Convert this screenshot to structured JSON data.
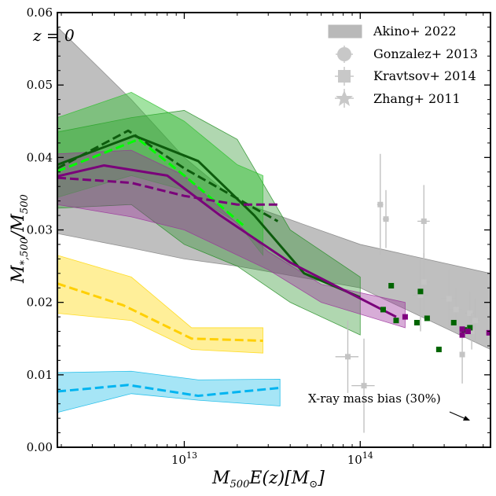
{
  "chart_data": {
    "type": "line",
    "xlabel": "M500E(z)[M⊙]",
    "ylabel": "M*,500/M500",
    "xscale": "log",
    "xlim": [
      1900000000000.0,
      550000000000000.0
    ],
    "ylim": [
      0.0,
      0.06
    ],
    "x_ticks": [
      {
        "value": 10000000000000.0,
        "label": "10^13"
      },
      {
        "value": 100000000000000.0,
        "label": "10^14"
      }
    ],
    "y_ticks": [
      "0.00",
      "0.01",
      "0.02",
      "0.03",
      "0.04",
      "0.05",
      "0.06"
    ],
    "annotation_z": "z = 0",
    "annotation_bias": "X-ray mass bias (30%)",
    "legend": {
      "placement": "top-right",
      "entries": [
        {
          "label": "Akino+ 2022",
          "marker": "band"
        },
        {
          "label": "Gonzalez+ 2013",
          "marker": "circle"
        },
        {
          "label": "Kravtsov+ 2014",
          "marker": "square"
        },
        {
          "label": "Zhang+ 2011",
          "marker": "star"
        }
      ]
    },
    "bands": [
      {
        "color": "#808080",
        "opacity": 0.5,
        "x": [
          1900000000000.0,
          5000000000000.0,
          10000000000000.0,
          20000000000000.0,
          100000000000000.0,
          550000000000000.0
        ],
        "upper": [
          0.058,
          0.048,
          0.04,
          0.034,
          0.028,
          0.024
        ],
        "lower": [
          0.0295,
          0.0275,
          0.026,
          0.025,
          0.022,
          0.0135
        ]
      },
      {
        "color": "#1e8c1e",
        "opacity": 0.35,
        "x": [
          1900000000000.0,
          5000000000000.0,
          10000000000000.0,
          20000000000000.0,
          40000000000000.0,
          100000000000000.0
        ],
        "upper": [
          0.0435,
          0.0455,
          0.0465,
          0.0425,
          0.03,
          0.0235
        ],
        "lower": [
          0.033,
          0.0335,
          0.028,
          0.025,
          0.02,
          0.0155
        ]
      },
      {
        "color": "#30c030",
        "opacity": 0.45,
        "x": [
          1900000000000.0,
          5000000000000.0,
          10000000000000.0,
          20000000000000.0,
          28000000000000.0
        ],
        "upper": [
          0.0455,
          0.049,
          0.045,
          0.039,
          0.0375
        ],
        "lower": [
          0.0345,
          0.0375,
          0.0355,
          0.031,
          0.0265
        ]
      },
      {
        "color": "#9b309b",
        "opacity": 0.4,
        "x": [
          1900000000000.0,
          5000000000000.0,
          10000000000000.0,
          30000000000000.0,
          60000000000000.0,
          180000000000000.0
        ],
        "upper": [
          0.0405,
          0.041,
          0.0375,
          0.027,
          0.0225,
          0.02
        ],
        "lower": [
          0.0335,
          0.0318,
          0.03,
          0.0245,
          0.02,
          0.0165
        ]
      },
      {
        "color": "#ffd600",
        "opacity": 0.4,
        "x": [
          1900000000000.0,
          5000000000000.0,
          11000000000000.0,
          28000000000000.0
        ],
        "upper": [
          0.0265,
          0.0235,
          0.0165,
          0.0165
        ],
        "lower": [
          0.0185,
          0.0175,
          0.0135,
          0.013
        ]
      },
      {
        "color": "#00b4e6",
        "opacity": 0.35,
        "x": [
          1900000000000.0,
          5000000000000.0,
          12000000000000.0,
          35000000000000.0
        ],
        "upper": [
          0.0103,
          0.0105,
          0.0093,
          0.0094
        ],
        "lower": [
          0.0048,
          0.0074,
          0.0065,
          0.0057
        ]
      }
    ],
    "series": [
      {
        "color": "#0d5c0d",
        "dash": false,
        "width": 3,
        "x": [
          1900000000000.0,
          5200000000000.0,
          12000000000000.0,
          25000000000000.0,
          48000000000000.0,
          100000000000000.0
        ],
        "y": [
          0.039,
          0.043,
          0.0395,
          0.032,
          0.024,
          0.0207
        ]
      },
      {
        "color": "#0d5c0d",
        "dash": true,
        "width": 3,
        "x": [
          1900000000000.0,
          4800000000000.0,
          10000000000000.0,
          23000000000000.0,
          34000000000000.0
        ],
        "y": [
          0.0385,
          0.0437,
          0.0385,
          0.0335,
          0.0312
        ]
      },
      {
        "color": "#00ff00",
        "dash": true,
        "width": 3,
        "x": [
          1900000000000.0,
          5500000000000.0,
          10000000000000.0,
          22000000000000.0
        ],
        "y": [
          0.0381,
          0.0425,
          0.0375,
          0.0305
        ]
      },
      {
        "color": "#7a007a",
        "dash": false,
        "width": 3,
        "x": [
          1900000000000.0,
          3500000000000.0,
          8000000000000.0,
          16000000000000.0,
          40000000000000.0,
          160000000000000.0
        ],
        "y": [
          0.0374,
          0.0389,
          0.0375,
          0.032,
          0.0255,
          0.018
        ]
      },
      {
        "color": "#7a007a",
        "dash": true,
        "width": 3,
        "x": [
          1900000000000.0,
          5000000000000.0,
          10000000000000.0,
          20000000000000.0,
          35000000000000.0
        ],
        "y": [
          0.0372,
          0.0365,
          0.0347,
          0.0335,
          0.0335
        ]
      },
      {
        "color": "#ffcf00",
        "dash": true,
        "width": 3,
        "x": [
          1900000000000.0,
          4500000000000.0,
          11000000000000.0,
          28000000000000.0
        ],
        "y": [
          0.0226,
          0.0196,
          0.015,
          0.0147
        ]
      },
      {
        "color": "#00b4f0",
        "dash": true,
        "width": 3,
        "x": [
          1900000000000.0,
          4800000000000.0,
          12000000000000.0,
          35000000000000.0
        ],
        "y": [
          0.0077,
          0.0086,
          0.0071,
          0.0082
        ]
      }
    ],
    "obs_points": [
      {
        "x": 130000000000000.0,
        "y": 0.0335,
        "xe": 0.04,
        "ye": 0.007
      },
      {
        "x": 140000000000000.0,
        "y": 0.0315,
        "xe": 0.04,
        "ye": 0.004
      },
      {
        "x": 230000000000000.0,
        "y": 0.0312,
        "xe": 0.08,
        "ye": 0.005
      },
      {
        "x": 230000000000000.0,
        "y": 0.0228,
        "xe": 0.08,
        "ye": 0.004
      },
      {
        "x": 220000000000000.0,
        "y": 0.021,
        "xe": 0.1,
        "ye": 0.005
      },
      {
        "x": 320000000000000.0,
        "y": 0.0205,
        "xe": 0.1,
        "ye": 0.004
      },
      {
        "x": 350000000000000.0,
        "y": 0.019,
        "xe": 0.08,
        "ye": 0.003
      },
      {
        "x": 420000000000000.0,
        "y": 0.0185,
        "xe": 0.06,
        "ye": 0.003
      },
      {
        "x": 450000000000000.0,
        "y": 0.0175,
        "xe": 0.06,
        "ye": 0.003
      },
      {
        "x": 430000000000000.0,
        "y": 0.016,
        "xe": 0.06,
        "ye": 0.0025
      },
      {
        "x": 380000000000000.0,
        "y": 0.0128,
        "xe": 0.03,
        "ye": 0.004
      },
      {
        "x": 85000000000000.0,
        "y": 0.0125,
        "xe": 0.15,
        "ye": 0.005
      },
      {
        "x": 105000000000000.0,
        "y": 0.0085,
        "xe": 0.15,
        "ye": 0.0065
      }
    ],
    "green_squares": [
      [
        150000000000000.0,
        0.0223
      ],
      [
        160000000000000.0,
        0.0175
      ],
      [
        135000000000000.0,
        0.019
      ],
      [
        210000000000000.0,
        0.0172
      ],
      [
        240000000000000.0,
        0.0178
      ],
      [
        220000000000000.0,
        0.0215
      ],
      [
        280000000000000.0,
        0.0135
      ],
      [
        340000000000000.0,
        0.0172
      ],
      [
        390000000000000.0,
        0.0162
      ],
      [
        420000000000000.0,
        0.0165
      ]
    ],
    "purple_squares": [
      [
        180000000000000.0,
        0.018
      ],
      [
        410000000000000.0,
        0.016
      ],
      [
        380000000000000.0,
        0.0155
      ],
      [
        540000000000000.0,
        0.0158
      ],
      [
        380000000000000.0,
        0.0163
      ]
    ]
  }
}
